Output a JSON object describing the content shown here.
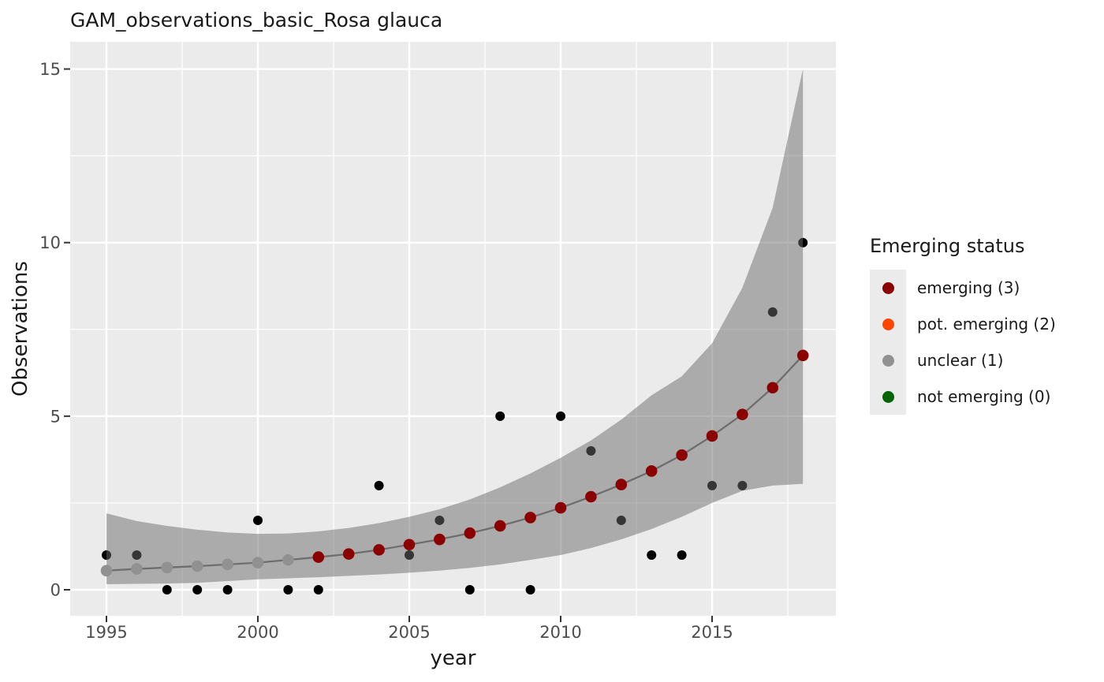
{
  "title": "GAM_observations_basic_Rosa glauca",
  "legend": {
    "title": "Emerging status",
    "items": [
      {
        "id": "emerging",
        "label": "emerging (3)",
        "color": "#8B0000"
      },
      {
        "id": "pot-emerging",
        "label": "pot. emerging (2)",
        "color": "#FF4500"
      },
      {
        "id": "unclear",
        "label": "unclear (1)",
        "color": "#919191"
      },
      {
        "id": "not-emerging",
        "label": "not emerging (0)",
        "color": "#006400"
      }
    ]
  },
  "chart_data": {
    "type": "scatter",
    "title": "GAM_observations_basic_Rosa glauca",
    "xlabel": "year",
    "ylabel": "Observations",
    "x_ticks": [
      1995,
      2000,
      2005,
      2010,
      2015
    ],
    "y_ticks": [
      0,
      5,
      10,
      15
    ],
    "x_minor": [
      1997.5,
      2002.5,
      2007.5,
      2012.5,
      2017.5
    ],
    "y_minor": [
      2.5,
      7.5,
      12.5
    ],
    "xlim": [
      1993.8,
      2019.2
    ],
    "ylim": [
      -0.75,
      15.8
    ],
    "grid": "on",
    "legend_position": "right",
    "series": [
      {
        "name": "observations",
        "type": "scatter",
        "x": [
          1995,
          1996,
          1997,
          1998,
          1999,
          2000,
          2001,
          2002,
          2004,
          2005,
          2006,
          2007,
          2008,
          2009,
          2010,
          2011,
          2012,
          2013,
          2014,
          2015,
          2016,
          2017,
          2018
        ],
        "y": [
          1,
          1,
          0,
          0,
          0,
          2,
          0,
          0,
          3,
          1,
          2,
          0,
          5,
          0,
          5,
          4,
          2,
          1,
          1,
          3,
          3,
          8,
          10
        ]
      },
      {
        "name": "gam_fitted",
        "type": "line_with_points",
        "x": [
          1995,
          1996,
          1997,
          1998,
          1999,
          2000,
          2001,
          2002,
          2003,
          2004,
          2005,
          2006,
          2007,
          2008,
          2009,
          2010,
          2011,
          2012,
          2013,
          2014,
          2015,
          2016,
          2017,
          2018
        ],
        "y": [
          0.55,
          0.6,
          0.64,
          0.68,
          0.73,
          0.78,
          0.86,
          0.94,
          1.03,
          1.15,
          1.3,
          1.45,
          1.63,
          1.84,
          2.08,
          2.36,
          2.68,
          3.03,
          3.42,
          3.88,
          4.43,
          5.05,
          5.82,
          6.75
        ],
        "status": [
          "unclear",
          "unclear",
          "unclear",
          "unclear",
          "unclear",
          "unclear",
          "unclear",
          "emerging",
          "emerging",
          "emerging",
          "emerging",
          "emerging",
          "emerging",
          "emerging",
          "emerging",
          "emerging",
          "emerging",
          "emerging",
          "emerging",
          "emerging",
          "emerging",
          "emerging",
          "emerging",
          "emerging"
        ]
      },
      {
        "name": "confidence_ribbon",
        "type": "ribbon",
        "x": [
          1995,
          1996,
          1997,
          1998,
          1999,
          2000,
          2001,
          2002,
          2003,
          2004,
          2005,
          2006,
          2007,
          2008,
          2009,
          2010,
          2011,
          2012,
          2013,
          2014,
          2015,
          2016,
          2017,
          2018
        ],
        "lower": [
          0.16,
          0.17,
          0.18,
          0.2,
          0.25,
          0.3,
          0.33,
          0.36,
          0.4,
          0.44,
          0.49,
          0.55,
          0.63,
          0.73,
          0.86,
          1.0,
          1.2,
          1.45,
          1.75,
          2.1,
          2.5,
          2.85,
          3.0,
          3.05
        ],
        "upper": [
          2.2,
          1.98,
          1.84,
          1.73,
          1.65,
          1.61,
          1.62,
          1.68,
          1.78,
          1.92,
          2.1,
          2.32,
          2.6,
          2.95,
          3.35,
          3.8,
          4.3,
          4.9,
          5.6,
          6.15,
          7.1,
          8.7,
          11.0,
          15.0
        ]
      }
    ],
    "colors": {
      "panel_background": "#EBEBEB",
      "grid": "#FFFFFF",
      "ribbon": "rgba(107,107,107,0.5)",
      "smooth_line": "#6E6E6E",
      "observation": "#000000",
      "status_emerging": "#8B0000",
      "status_unclear": "#919191",
      "tick_mark": "#333333",
      "tick_label": "#4D4D4D",
      "axis_title": "#1A1A1A"
    }
  }
}
